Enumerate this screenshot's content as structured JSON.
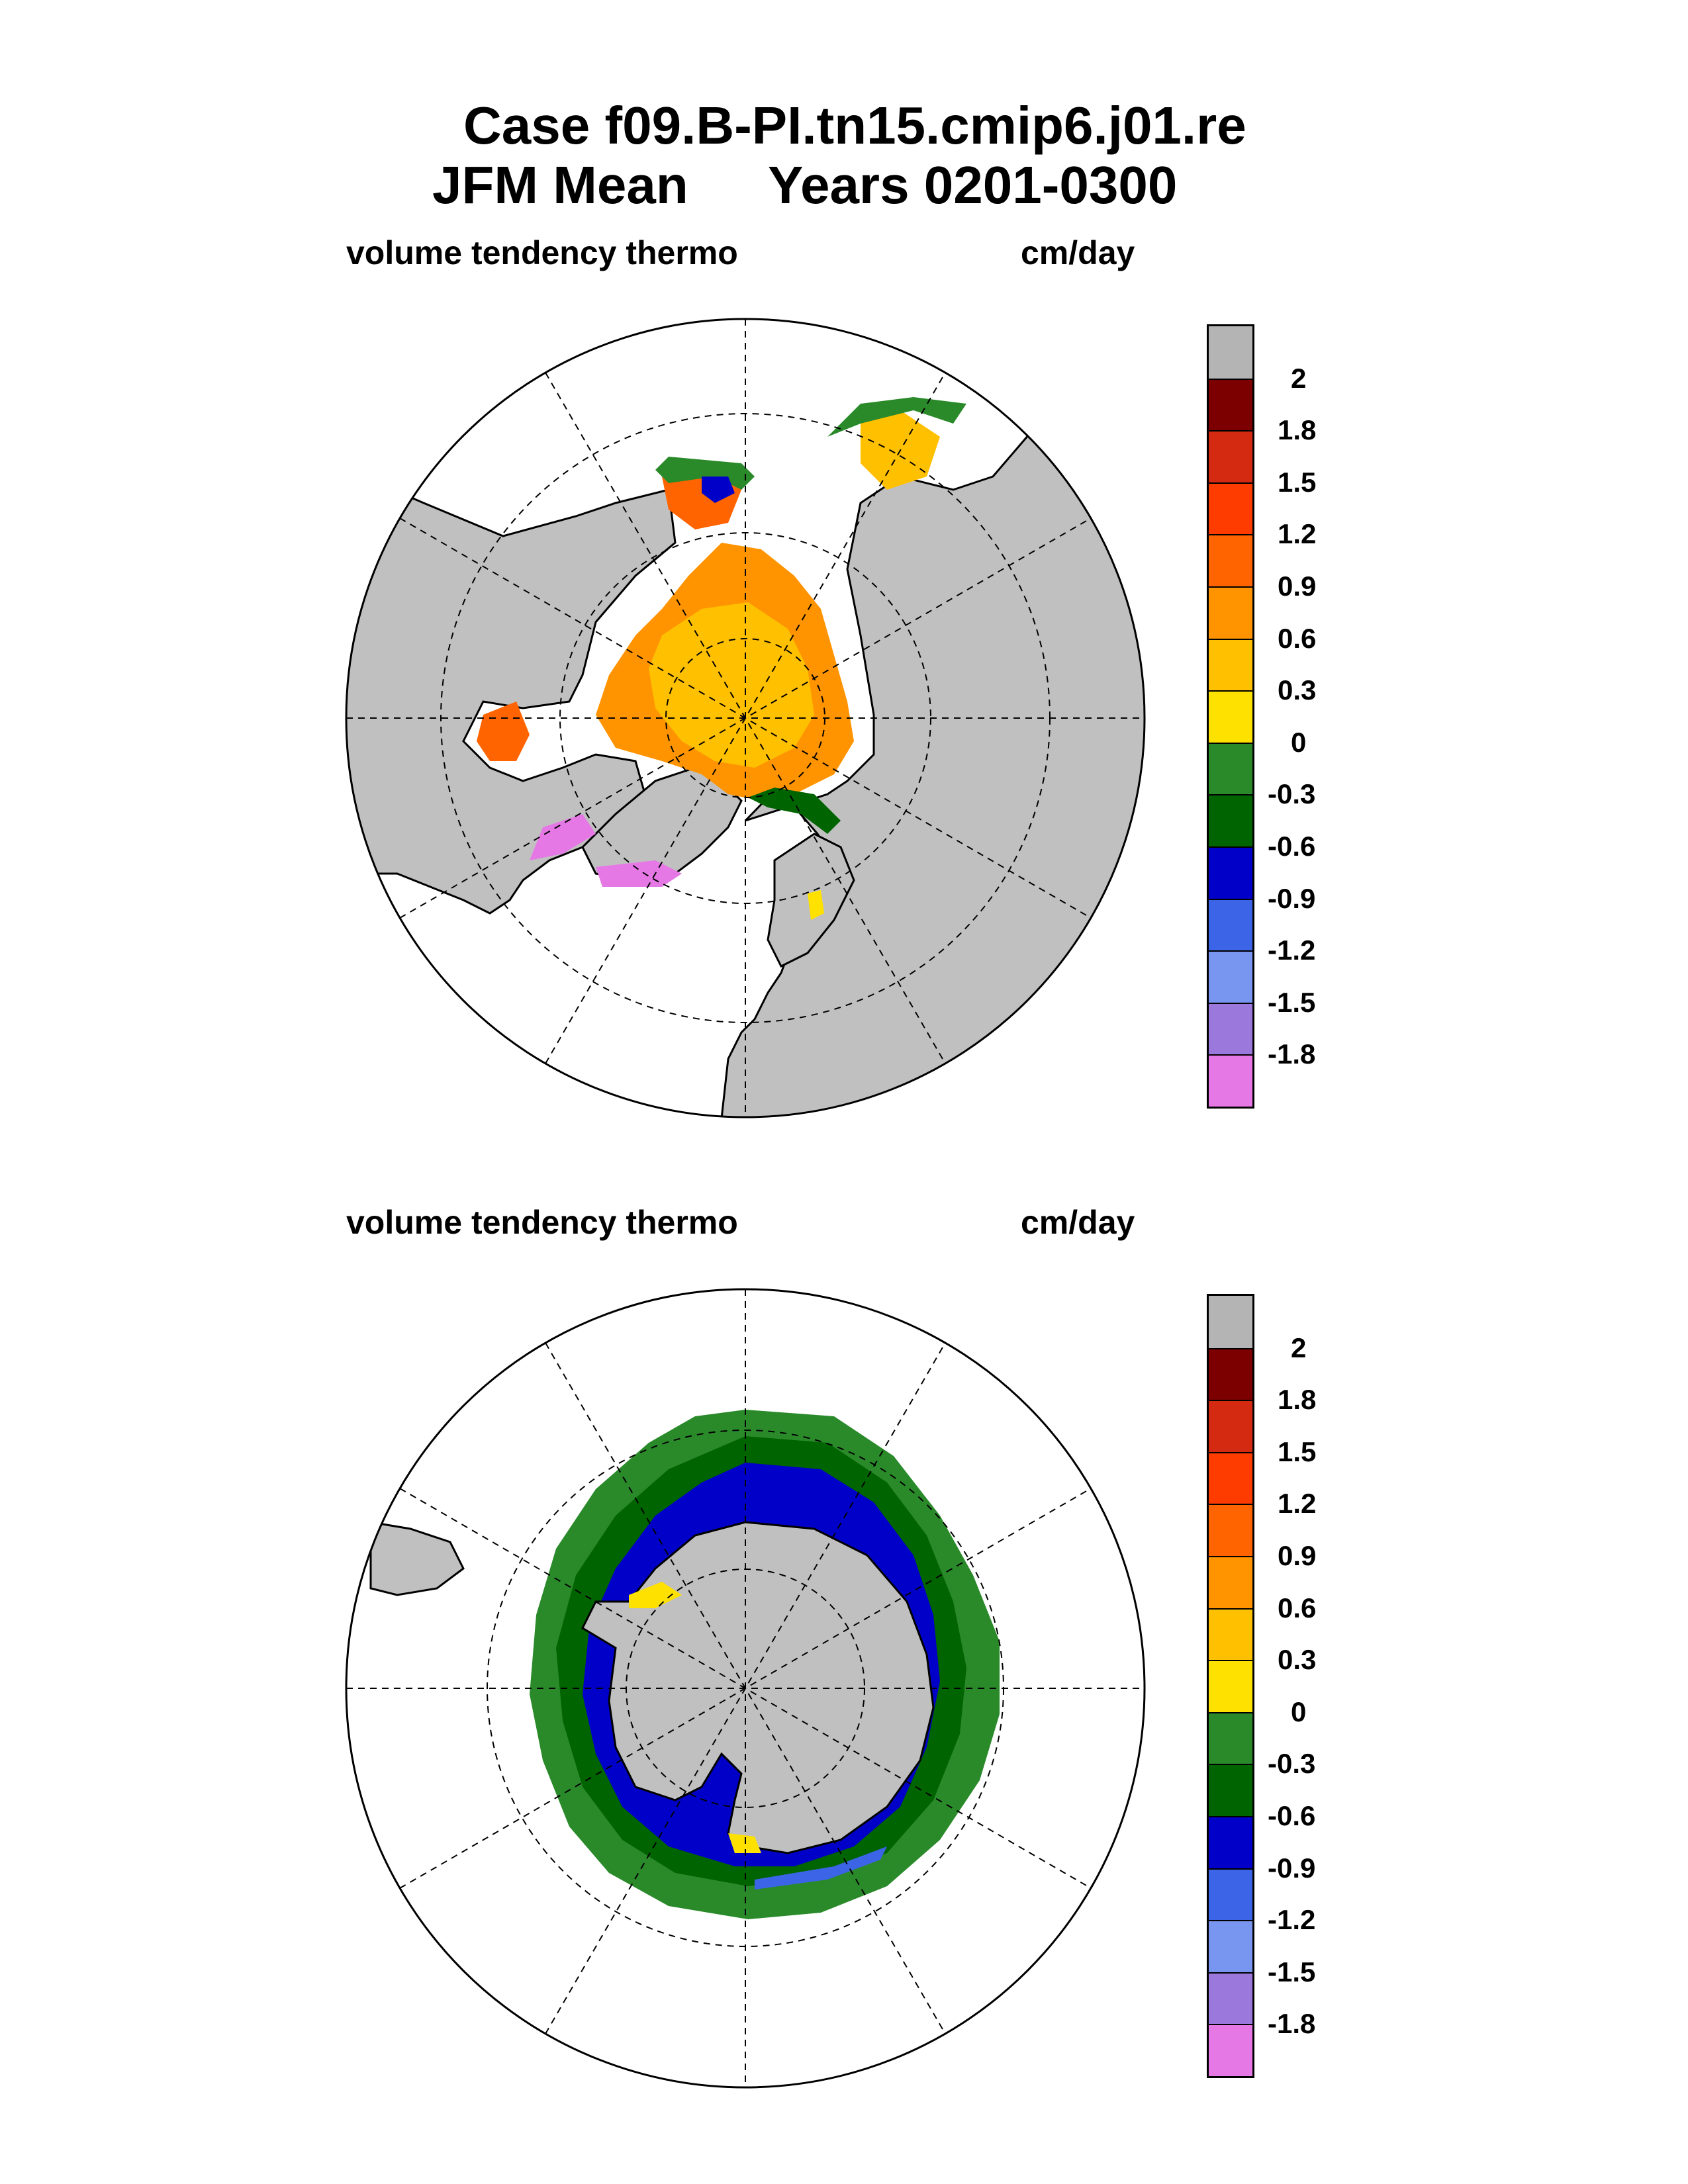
{
  "title": {
    "line1": "Case f09.B-PI.tn15.cmip6.j01.re",
    "line2_left": "JFM Mean",
    "line2_right": "Years 0201-0300"
  },
  "panels": [
    {
      "hemisphere": "north",
      "left_label": "volume tendency thermo",
      "right_label": "cm/day"
    },
    {
      "hemisphere": "south",
      "left_label": "volume tendency thermo",
      "right_label": "cm/day"
    }
  ],
  "colorbar": {
    "labels": [
      "2",
      "1.8",
      "1.5",
      "1.2",
      "0.9",
      "0.6",
      "0.3",
      "0",
      "-0.3",
      "-0.6",
      "-0.9",
      "-1.2",
      "-1.5",
      "-1.8"
    ],
    "colors": [
      "#b4b4b4",
      "#7d0000",
      "#d42a12",
      "#ff3c00",
      "#ff6400",
      "#ff9400",
      "#ffc000",
      "#ffe100",
      "#2a8a2a",
      "#006400",
      "#0000c8",
      "#3c64e6",
      "#7896f0",
      "#9a78dc",
      "#e678e6"
    ]
  },
  "map_colors": {
    "land": "#c0c0c0",
    "ocean_no_ice": "#ffffff"
  }
}
